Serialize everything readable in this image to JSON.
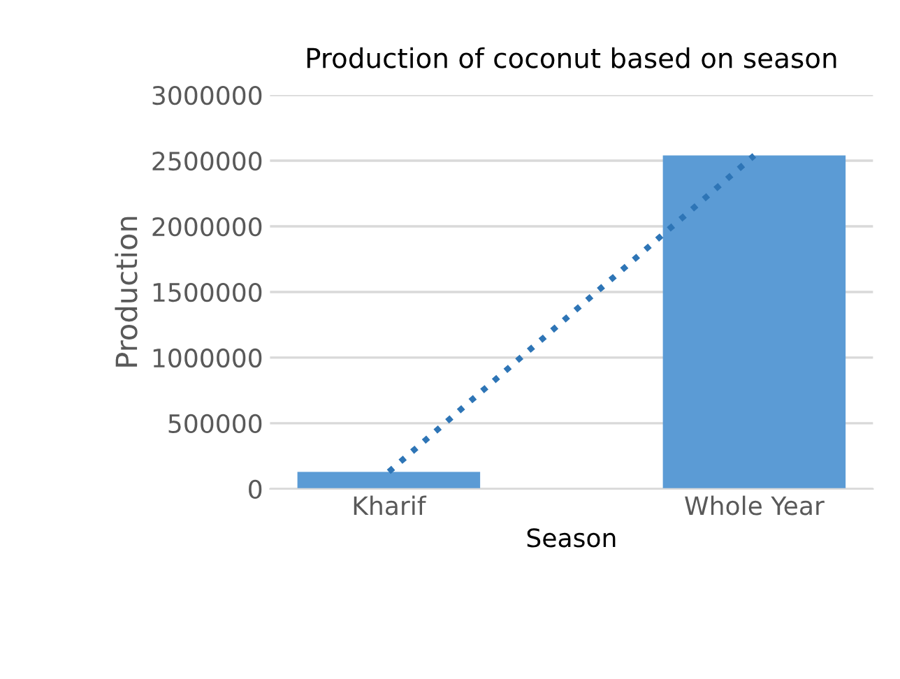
{
  "chart_data": {
    "type": "bar",
    "title": "Production of coconut based on season",
    "xlabel": "Season",
    "ylabel": "Production",
    "categories": [
      "Kharif",
      "Whole Year"
    ],
    "series": [
      {
        "color": "#5b9bd5",
        "values": [
          130000,
          2540000
        ]
      },
      {
        "type": "line",
        "color": "#2e75b6",
        "line_style": "dotted",
        "values": [
          130000,
          2540000
        ]
      }
    ],
    "ylim": [
      0,
      3000000
    ],
    "yticks": [
      0,
      500000,
      1000000,
      1500000,
      2000000,
      2500000,
      3000000
    ],
    "grid": "y",
    "legend": false
  }
}
